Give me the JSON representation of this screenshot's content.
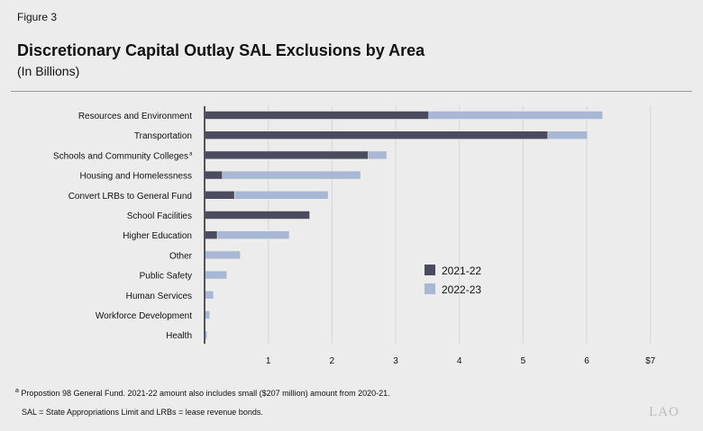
{
  "figure_label": "Figure 3",
  "chart_data": {
    "type": "bar",
    "orientation": "horizontal",
    "stacked": true,
    "title": "Discretionary Capital Outlay SAL Exclusions by Area",
    "subtitle": "(In Billions)",
    "categories": [
      "Resources and Environment",
      "Transportation",
      "Schools and Community Colleges",
      "Housing and Homelessness",
      "Convert LRBs to General Fund",
      "School Facilities",
      "Higher Education",
      "Other",
      "Public Safety",
      "Human Services",
      "Workforce Development",
      "Health"
    ],
    "category_superscripts": {
      "Schools and Community Colleges": "a"
    },
    "series": [
      {
        "name": "2021-22",
        "color": "#4b4b5f",
        "values": [
          3.52,
          5.39,
          2.57,
          0.28,
          0.47,
          1.65,
          0.2,
          0,
          0,
          0,
          0,
          0
        ]
      },
      {
        "name": "2022-23",
        "color": "#a8b7d4",
        "values": [
          2.73,
          0.62,
          0.29,
          2.17,
          1.47,
          0,
          1.13,
          0.56,
          0.35,
          0.14,
          0.08,
          0.04
        ]
      }
    ],
    "xlim": [
      0,
      7
    ],
    "xticks": [
      "1",
      "2",
      "3",
      "4",
      "5",
      "6",
      "$7"
    ],
    "grid": true,
    "legend": "center-right"
  },
  "footnotes": {
    "a_marker": "a",
    "a_text": "Propostion 98 General Fund. 2021-22 amount also includes small ($207 million) amount from 2020-21.",
    "abbrev": "SAL = State Appropriations Limit and LRBs = lease revenue bonds."
  },
  "logo": "LAO"
}
